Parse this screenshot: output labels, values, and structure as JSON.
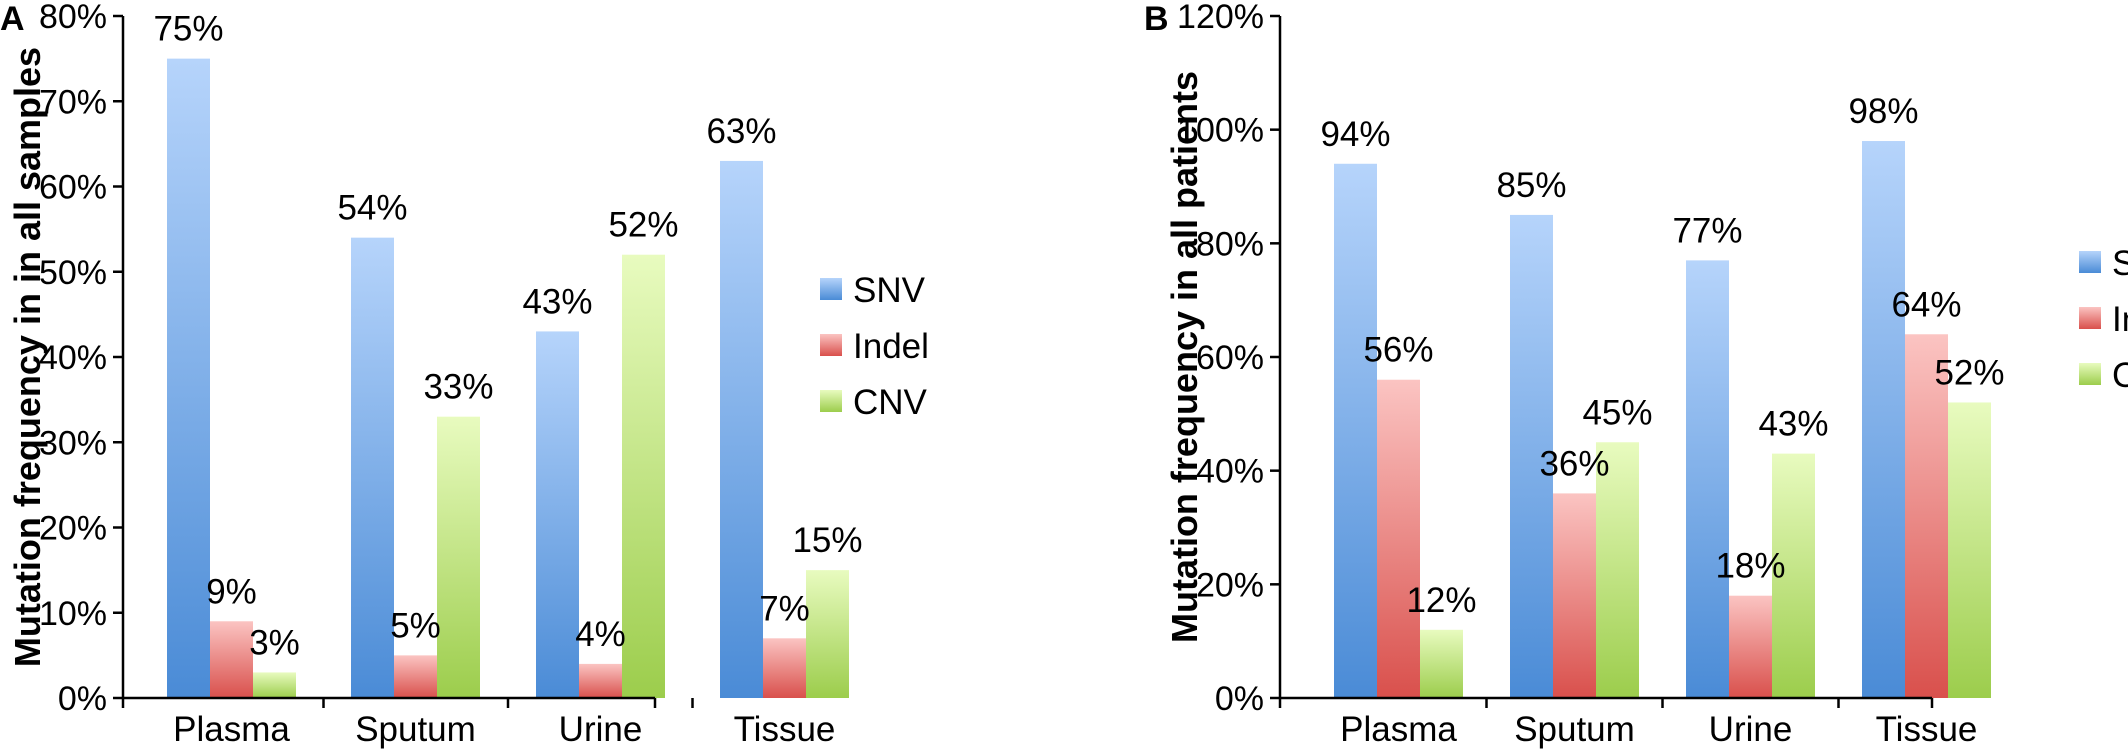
{
  "chart_data": [
    {
      "type": "bar",
      "panel": "A",
      "ylabel": "Mutation frequency in in all samples",
      "ylim": [
        0,
        80
      ],
      "yticks": [
        "0%",
        "10%",
        "20%",
        "30%",
        "40%",
        "50%",
        "60%",
        "70%",
        "80%"
      ],
      "categories": [
        "Plasma",
        "Sputum",
        "Urine",
        "Tissue"
      ],
      "series": [
        {
          "name": "SNV",
          "values": [
            75,
            54,
            43,
            63
          ],
          "labels": [
            "75%",
            "54%",
            "43%",
            "63%"
          ]
        },
        {
          "name": "Indel",
          "values": [
            9,
            5,
            4,
            7
          ],
          "labels": [
            "9%",
            "5%",
            "4%",
            "7%"
          ]
        },
        {
          "name": "CNV",
          "values": [
            3,
            33,
            52,
            15
          ],
          "labels": [
            "3%",
            "33%",
            "52%",
            "15%"
          ]
        }
      ],
      "legend": "right",
      "grid": false
    },
    {
      "type": "bar",
      "panel": "B",
      "ylabel": "Mutation frequency in all patients",
      "ylim": [
        0,
        120
      ],
      "yticks": [
        "0%",
        "20%",
        "40%",
        "60%",
        "80%",
        "100%",
        "120%"
      ],
      "categories": [
        "Plasma",
        "Sputum",
        "Urine",
        "Tissue"
      ],
      "series": [
        {
          "name": "SNV",
          "values": [
            94,
            85,
            77,
            98
          ],
          "labels": [
            "94%",
            "85%",
            "77%",
            "98%"
          ]
        },
        {
          "name": "Indel",
          "values": [
            56,
            36,
            18,
            64
          ],
          "labels": [
            "56%",
            "36%",
            "18%",
            "64%"
          ]
        },
        {
          "name": "CNV",
          "values": [
            12,
            45,
            43,
            52
          ],
          "labels": [
            "12%",
            "45%",
            "43%",
            "52%"
          ]
        }
      ],
      "legend": "right",
      "grid": false
    }
  ],
  "colors": {
    "SNV_top": "#b6d4fb",
    "SNV_bottom": "#4a8bd6",
    "Indel_top": "#fbc4c2",
    "Indel_bottom": "#d9504c",
    "CNV_top": "#e8fbbf",
    "CNV_bottom": "#9ccd4c"
  }
}
